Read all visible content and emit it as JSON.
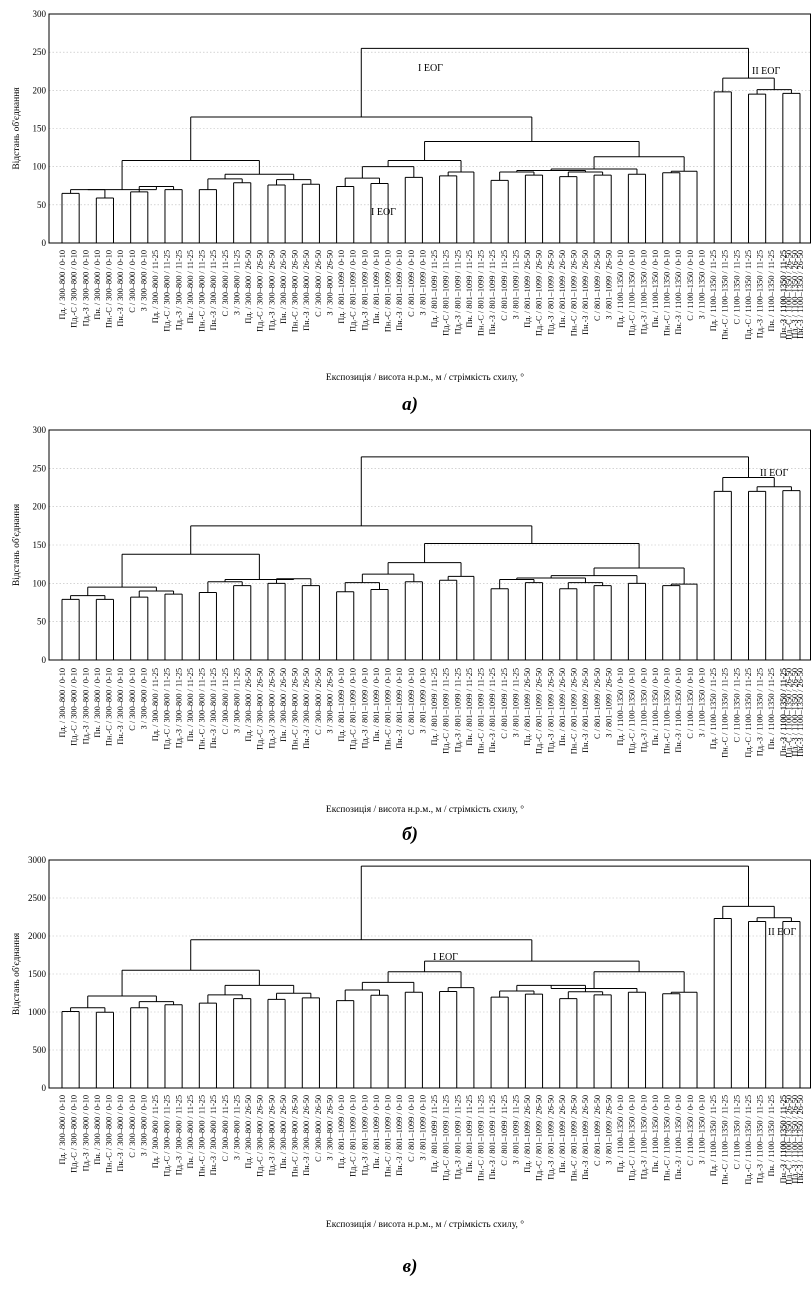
{
  "chart_data": [
    {
      "type": "dendrogram",
      "panel_label": "а)",
      "ylabel": "Відстань об'єднання",
      "xlabel": "Експозиція / висота н.р.м., м / стрімкість схилу, °",
      "ylim": [
        0,
        300
      ],
      "yticks": [
        0,
        50,
        100,
        150,
        200,
        250,
        300
      ],
      "group_labels": [
        "I ЕОГ",
        "II ЕОГ"
      ],
      "leaf_heights": [
        58,
        59,
        53,
        52,
        56,
        61,
        64,
        61,
        64,
        62,
        73,
        68,
        70,
        65,
        71,
        70,
        69,
        66,
        73,
        67,
        77,
        80,
        83,
        83,
        67,
        76,
        75,
        83,
        74,
        81,
        80,
        83,
        80,
        81,
        84,
        85,
        88,
        84,
        196,
        189,
        192,
        193,
        194,
        188
      ],
      "heights": {
        "g1": 70,
        "g2": 90,
        "A": 108,
        "g3": 78,
        "g4": 97,
        "B": 85,
        "C": 100,
        "D": 108,
        "E": 97,
        "F": 113,
        "G": 133,
        "H": 165,
        "II": 216,
        "root": 255
      }
    },
    {
      "type": "dendrogram",
      "panel_label": "б)",
      "ylabel": "Відстань об'єднання",
      "xlabel": "Експозиція / висота н.р.м., м / стрімкість схилу, °",
      "ylim": [
        0,
        300
      ],
      "yticks": [
        0,
        50,
        100,
        150,
        200,
        250,
        300
      ],
      "group_labels": [
        "I ЕОГ",
        "II ЕОГ"
      ],
      "leaf_heights": [
        73,
        72,
        67,
        73,
        70,
        76,
        80,
        78,
        82,
        77,
        91,
        89,
        94,
        85,
        91,
        79,
        75,
        84,
        76,
        87,
        91,
        96,
        99,
        93,
        76,
        87,
        85,
        95,
        77,
        87,
        85,
        91,
        86,
        84,
        94,
        88,
        93,
        88,
        218,
        211,
        215,
        218,
        219,
        208
      ],
      "heights": {
        "g1": 95,
        "g2": 105,
        "A": 138,
        "g3": 97,
        "g4": 110,
        "B": 101,
        "C": 112,
        "D": 127,
        "E": 110,
        "F": 120,
        "G": 152,
        "H": 175,
        "II": 238,
        "root": 265
      }
    },
    {
      "type": "dendrogram",
      "panel_label": "в)",
      "ylabel": "Відстань об'єднання",
      "xlabel": "Експозиція / висота н.р.м., м / стрімкість схилу, °",
      "ylim": [
        0,
        3000
      ],
      "yticks": [
        0,
        500,
        1000,
        1500,
        2000,
        2500,
        3000
      ],
      "group_labels": [
        "I ЕОГ",
        "II ЕОГ"
      ],
      "leaf_heights": [
        1000,
        980,
        920,
        990,
        950,
        1050,
        1090,
        1040,
        1110,
        1060,
        1170,
        1090,
        1150,
        1160,
        1180,
        1080,
        1040,
        1100,
        1080,
        1170,
        1160,
        1200,
        1220,
        1190,
        1060,
        1190,
        1090,
        1230,
        1210,
        1170,
        1130,
        1220,
        1180,
        1140,
        1200,
        1110,
        1200,
        1110,
        2210,
        2110,
        2170,
        2160,
        2170,
        2100
      ],
      "heights": {
        "g1": 1210,
        "g2": 1350,
        "A": 1550,
        "g3": 1290,
        "g4": 1380,
        "B": 1290,
        "C": 1390,
        "D": 1530,
        "E": 1310,
        "F": 1530,
        "G": 1670,
        "H": 1950,
        "II": 2390,
        "root": 2920
      }
    }
  ],
  "leaf_labels": [
    "Пд. / 300–800 / 0-10",
    "Пд.-С / 300–800 / 0-10",
    "Пд.-З / 300–800 / 0-10",
    "Пн. / 300–800 / 0-10",
    "Пн.-С / 300–800 / 0-10",
    "Пн.-З / 300–800 / 0-10",
    "С / 300–800 / 0-10",
    "З / 300–800 / 0-10",
    "Пд. / 300–800 / 11-25",
    "Пд.-С / 300–800 / 11-25",
    "Пд.-З / 300–800 / 11-25",
    "Пн. / 300–800 / 11-25",
    "Пн.-С / 300–800 / 11-25",
    "Пн.-З / 300–800 / 11-25",
    "С / 300–800 / 11-25",
    "З / 300–800 / 11-25",
    "Пд. / 300–800 / 26-50",
    "Пд.-С / 300–800 / 26-50",
    "Пд.-З / 300–800 / 26-50",
    "Пн. / 300–800 / 26-50",
    "Пн.-С / 300–800 / 26-50",
    "Пн.-З / 300–800 / 26-50",
    "С / 300–800 / 26-50",
    "З / 300–800 / 26-50",
    "Пд. / 801–1099 / 0-10",
    "Пд.-С / 801–1099 / 0-10",
    "Пд.-З / 801–1099 / 0-10",
    "Пн. / 801–1099 / 0-10",
    "Пн.-С / 801–1099 / 0-10",
    "Пн.-З / 801–1099 / 0-10",
    "С / 801–1099 / 0-10",
    "З / 801–1099 / 0-10",
    "Пд. / 801–1099 / 11-25",
    "Пд.-С / 801–1099 / 11-25",
    "Пд.-З / 801–1099 / 11-25",
    "Пн. / 801–1099 / 11-25",
    "Пн.-С / 801–1099 / 11-25",
    "Пн.-З / 801–1099 / 11-25",
    "С / 801–1099 / 11-25",
    "З / 801–1099 / 11-25",
    "Пд. / 801–1099 / 26-50",
    "Пд.-С / 801–1099 / 26-50",
    "Пд.-З / 801–1099 / 26-50",
    "Пн. / 801–1099 / 26-50",
    "Пн.-С / 801–1099 / 26-50",
    "Пн.-З / 801–1099 / 26-50",
    "С / 801–1099 / 26-50",
    "З / 801–1099 / 26-50",
    "Пд. / 1100–1350 / 0-10",
    "Пд.-С / 1100–1350 / 0-10",
    "Пд.-З / 1100–1350 / 0-10",
    "Пн. / 1100–1350 / 0-10",
    "Пн.-С / 1100–1350 / 0-10",
    "Пн.-З / 1100–1350 / 0-10",
    "С / 1100–1350 / 0-10",
    "З / 1100–1350 / 0-10",
    "Пд. / 1100–1350 / 11-25",
    "Пн.-С / 1100–1350 / 11-25",
    "С / 1100–1350 / 11-25",
    "Пд.-С / 1100–1350 / 11-25",
    "Пд.-З / 1100–1350 / 11-25",
    "Пн. / 1100–1350 / 11-25",
    "Пн.-З / 1100–1350 / 11-25",
    "З / 1100–1350 / 11-25",
    "Пд.-С / 1100–1350 / 26-50",
    "Пд.-З / 1100–1350 / 26-50",
    "Пн.-З / 1100–1350 / 26-50"
  ]
}
